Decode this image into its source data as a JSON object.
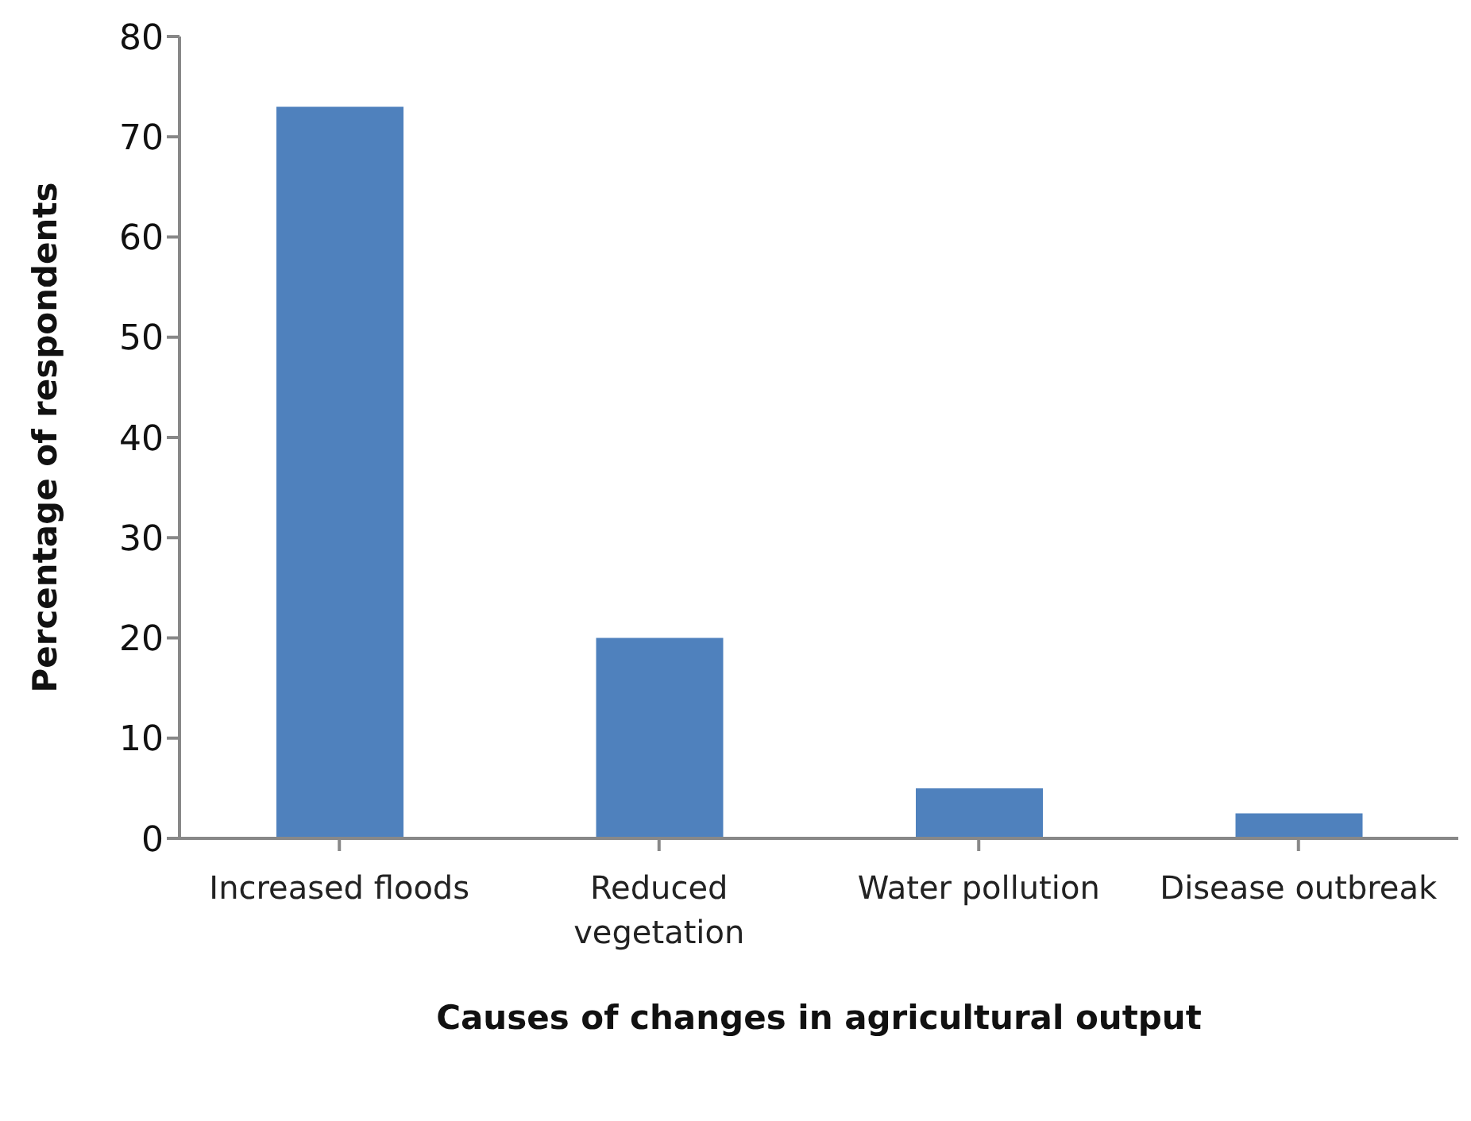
{
  "chart_data": {
    "type": "bar",
    "xlabel": "Causes of changes in agricultural output",
    "ylabel": "Percentage of respondents",
    "categories": [
      "Increased floods",
      "Reduced vegetation",
      "Water pollution",
      "Disease outbreak"
    ],
    "values": [
      73,
      20,
      5,
      2.5
    ],
    "color": "#4f81bd",
    "ylim": [
      0,
      80
    ],
    "yticks": [
      0,
      10,
      20,
      30,
      40,
      50,
      60,
      70,
      80
    ],
    "grid": false,
    "legend": false
  }
}
